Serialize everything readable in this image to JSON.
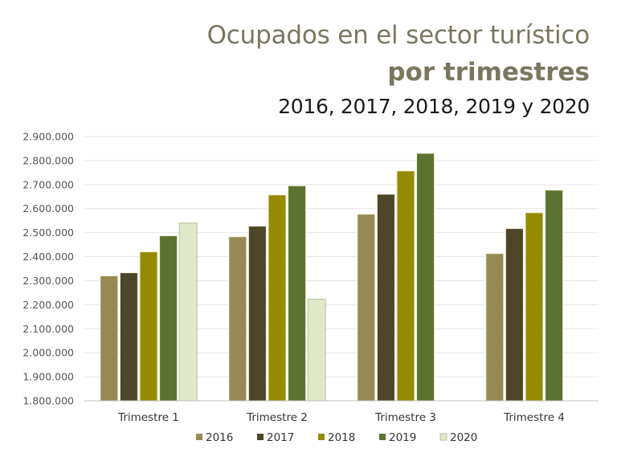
{
  "title": {
    "line1": "Ocupados en el sector turístico",
    "line2": "por trimestres",
    "line3": "2016, 2017, 2018, 2019 y 2020"
  },
  "chart_data": {
    "type": "bar",
    "title": "Ocupados en el sector turístico por trimestres 2016, 2017, 2018, 2019 y 2020",
    "xlabel": "",
    "ylabel": "",
    "categories": [
      "Trimestre 1",
      "Trimestre 2",
      "Trimestre 3",
      "Trimestre 4"
    ],
    "ylim": [
      1800000,
      2900000
    ],
    "yticks": [
      1800000,
      1900000,
      2000000,
      2100000,
      2200000,
      2300000,
      2400000,
      2500000,
      2600000,
      2700000,
      2800000,
      2900000
    ],
    "ytick_labels": [
      "1.800.000",
      "1.900.000",
      "2.000.000",
      "2.100.000",
      "2.200.000",
      "2.300.000",
      "2.400.000",
      "2.500.000",
      "2.600.000",
      "2.700.000",
      "2.800.000",
      "2.900.000"
    ],
    "grid": true,
    "legend_position": "bottom",
    "series": [
      {
        "name": "2016",
        "color": "#958a55",
        "values": [
          2320000,
          2483000,
          2577000,
          2413000
        ]
      },
      {
        "name": "2017",
        "color": "#4d4628",
        "values": [
          2333000,
          2527000,
          2660000,
          2517000
        ]
      },
      {
        "name": "2018",
        "color": "#968a00",
        "values": [
          2420000,
          2657000,
          2757000,
          2583000
        ]
      },
      {
        "name": "2019",
        "color": "#5c7230",
        "values": [
          2487000,
          2695000,
          2830000,
          2677000
        ]
      },
      {
        "name": "2020",
        "color": "#dfe8c8",
        "stroke": "#b8c29a",
        "values": [
          2540000,
          2223000,
          null,
          null
        ]
      }
    ]
  }
}
